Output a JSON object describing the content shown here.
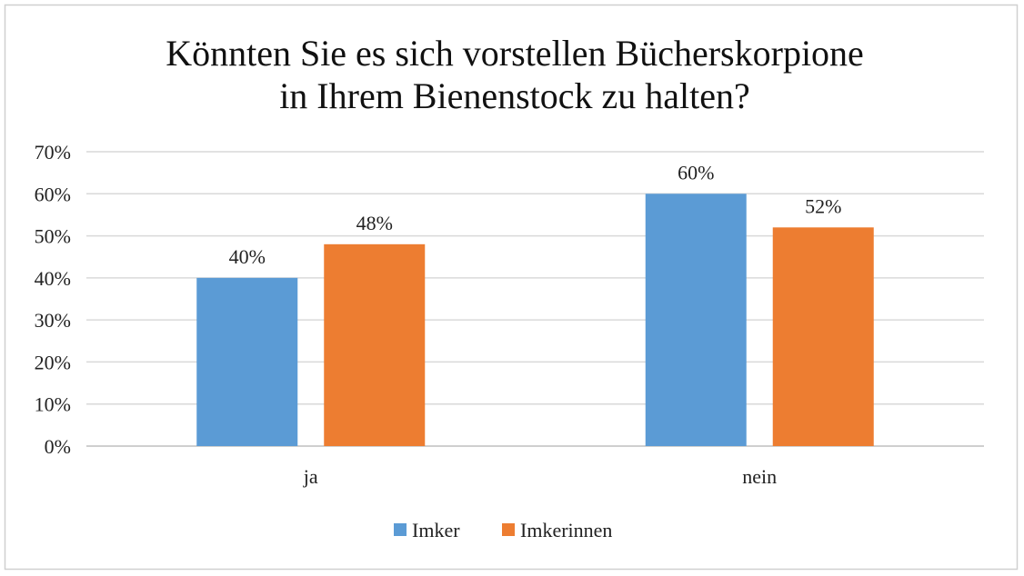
{
  "chart_data": {
    "type": "bar",
    "title": [
      "Könnten Sie es sich vorstellen Bücherskorpione",
      "in Ihrem Bienenstock zu halten?"
    ],
    "categories": [
      "ja",
      "nein"
    ],
    "series": [
      {
        "name": "Imker",
        "values": [
          40,
          60
        ],
        "color": "#5B9BD5"
      },
      {
        "name": "Imkerinnen",
        "values": [
          48,
          52
        ],
        "color": "#ED7D31"
      }
    ],
    "data_labels": [
      [
        "40%",
        "60%"
      ],
      [
        "48%",
        "52%"
      ]
    ],
    "yticks": [
      "0%",
      "10%",
      "20%",
      "30%",
      "40%",
      "50%",
      "60%",
      "70%"
    ],
    "ylim": [
      0,
      70
    ],
    "grid": true,
    "legend": "bottom",
    "xlabel": "",
    "ylabel": ""
  }
}
